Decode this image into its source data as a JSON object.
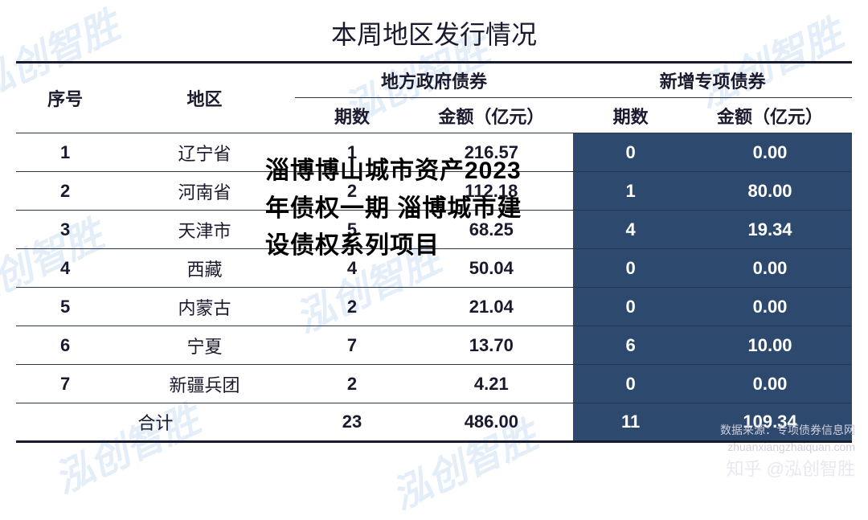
{
  "title": "本周地区发行情况",
  "watermark_text": "泓创智胜",
  "watermark_color": "rgba(100,160,220,0.18)",
  "highlight_bg": "#2d4a6e",
  "highlight_fg": "#ffffff",
  "border_color": "#2a3550",
  "overlay": "淄博博山城市资产2023年债权一期 淄博城市建设债权系列项目",
  "columns": {
    "seq": "序号",
    "region": "地区",
    "group1": "地方政府债券",
    "group2": "新增专项债券",
    "periods": "期数",
    "amount": "金额（亿元）"
  },
  "rows": [
    {
      "seq": "1",
      "region": "辽宁省",
      "g1_periods": "1",
      "g1_amount": "216.57",
      "g2_periods": "0",
      "g2_amount": "0.00"
    },
    {
      "seq": "2",
      "region": "河南省",
      "g1_periods": "2",
      "g1_amount": "112.18",
      "g2_periods": "1",
      "g2_amount": "80.00"
    },
    {
      "seq": "3",
      "region": "天津市",
      "g1_periods": "5",
      "g1_amount": "68.25",
      "g2_periods": "4",
      "g2_amount": "19.34"
    },
    {
      "seq": "4",
      "region": "西藏",
      "g1_periods": "4",
      "g1_amount": "50.04",
      "g2_periods": "0",
      "g2_amount": "0.00"
    },
    {
      "seq": "5",
      "region": "内蒙古",
      "g1_periods": "2",
      "g1_amount": "21.04",
      "g2_periods": "0",
      "g2_amount": "0.00"
    },
    {
      "seq": "6",
      "region": "宁夏",
      "g1_periods": "7",
      "g1_amount": "13.70",
      "g2_periods": "6",
      "g2_amount": "10.00"
    },
    {
      "seq": "7",
      "region": "新疆兵团",
      "g1_periods": "2",
      "g1_amount": "4.21",
      "g2_periods": "0",
      "g2_amount": "0.00"
    }
  ],
  "total": {
    "label": "合计",
    "g1_periods": "23",
    "g1_amount": "486.00",
    "g2_periods": "11",
    "g2_amount": "109.34"
  },
  "footer": {
    "source": "数据来源：专项债券信息网",
    "url": "zhuanxiangzhaiquan.com",
    "attribution": "知乎 @泓创智胜"
  },
  "col_widths": [
    "120px",
    "220px",
    "140px",
    "200px",
    "140px",
    "200px"
  ]
}
